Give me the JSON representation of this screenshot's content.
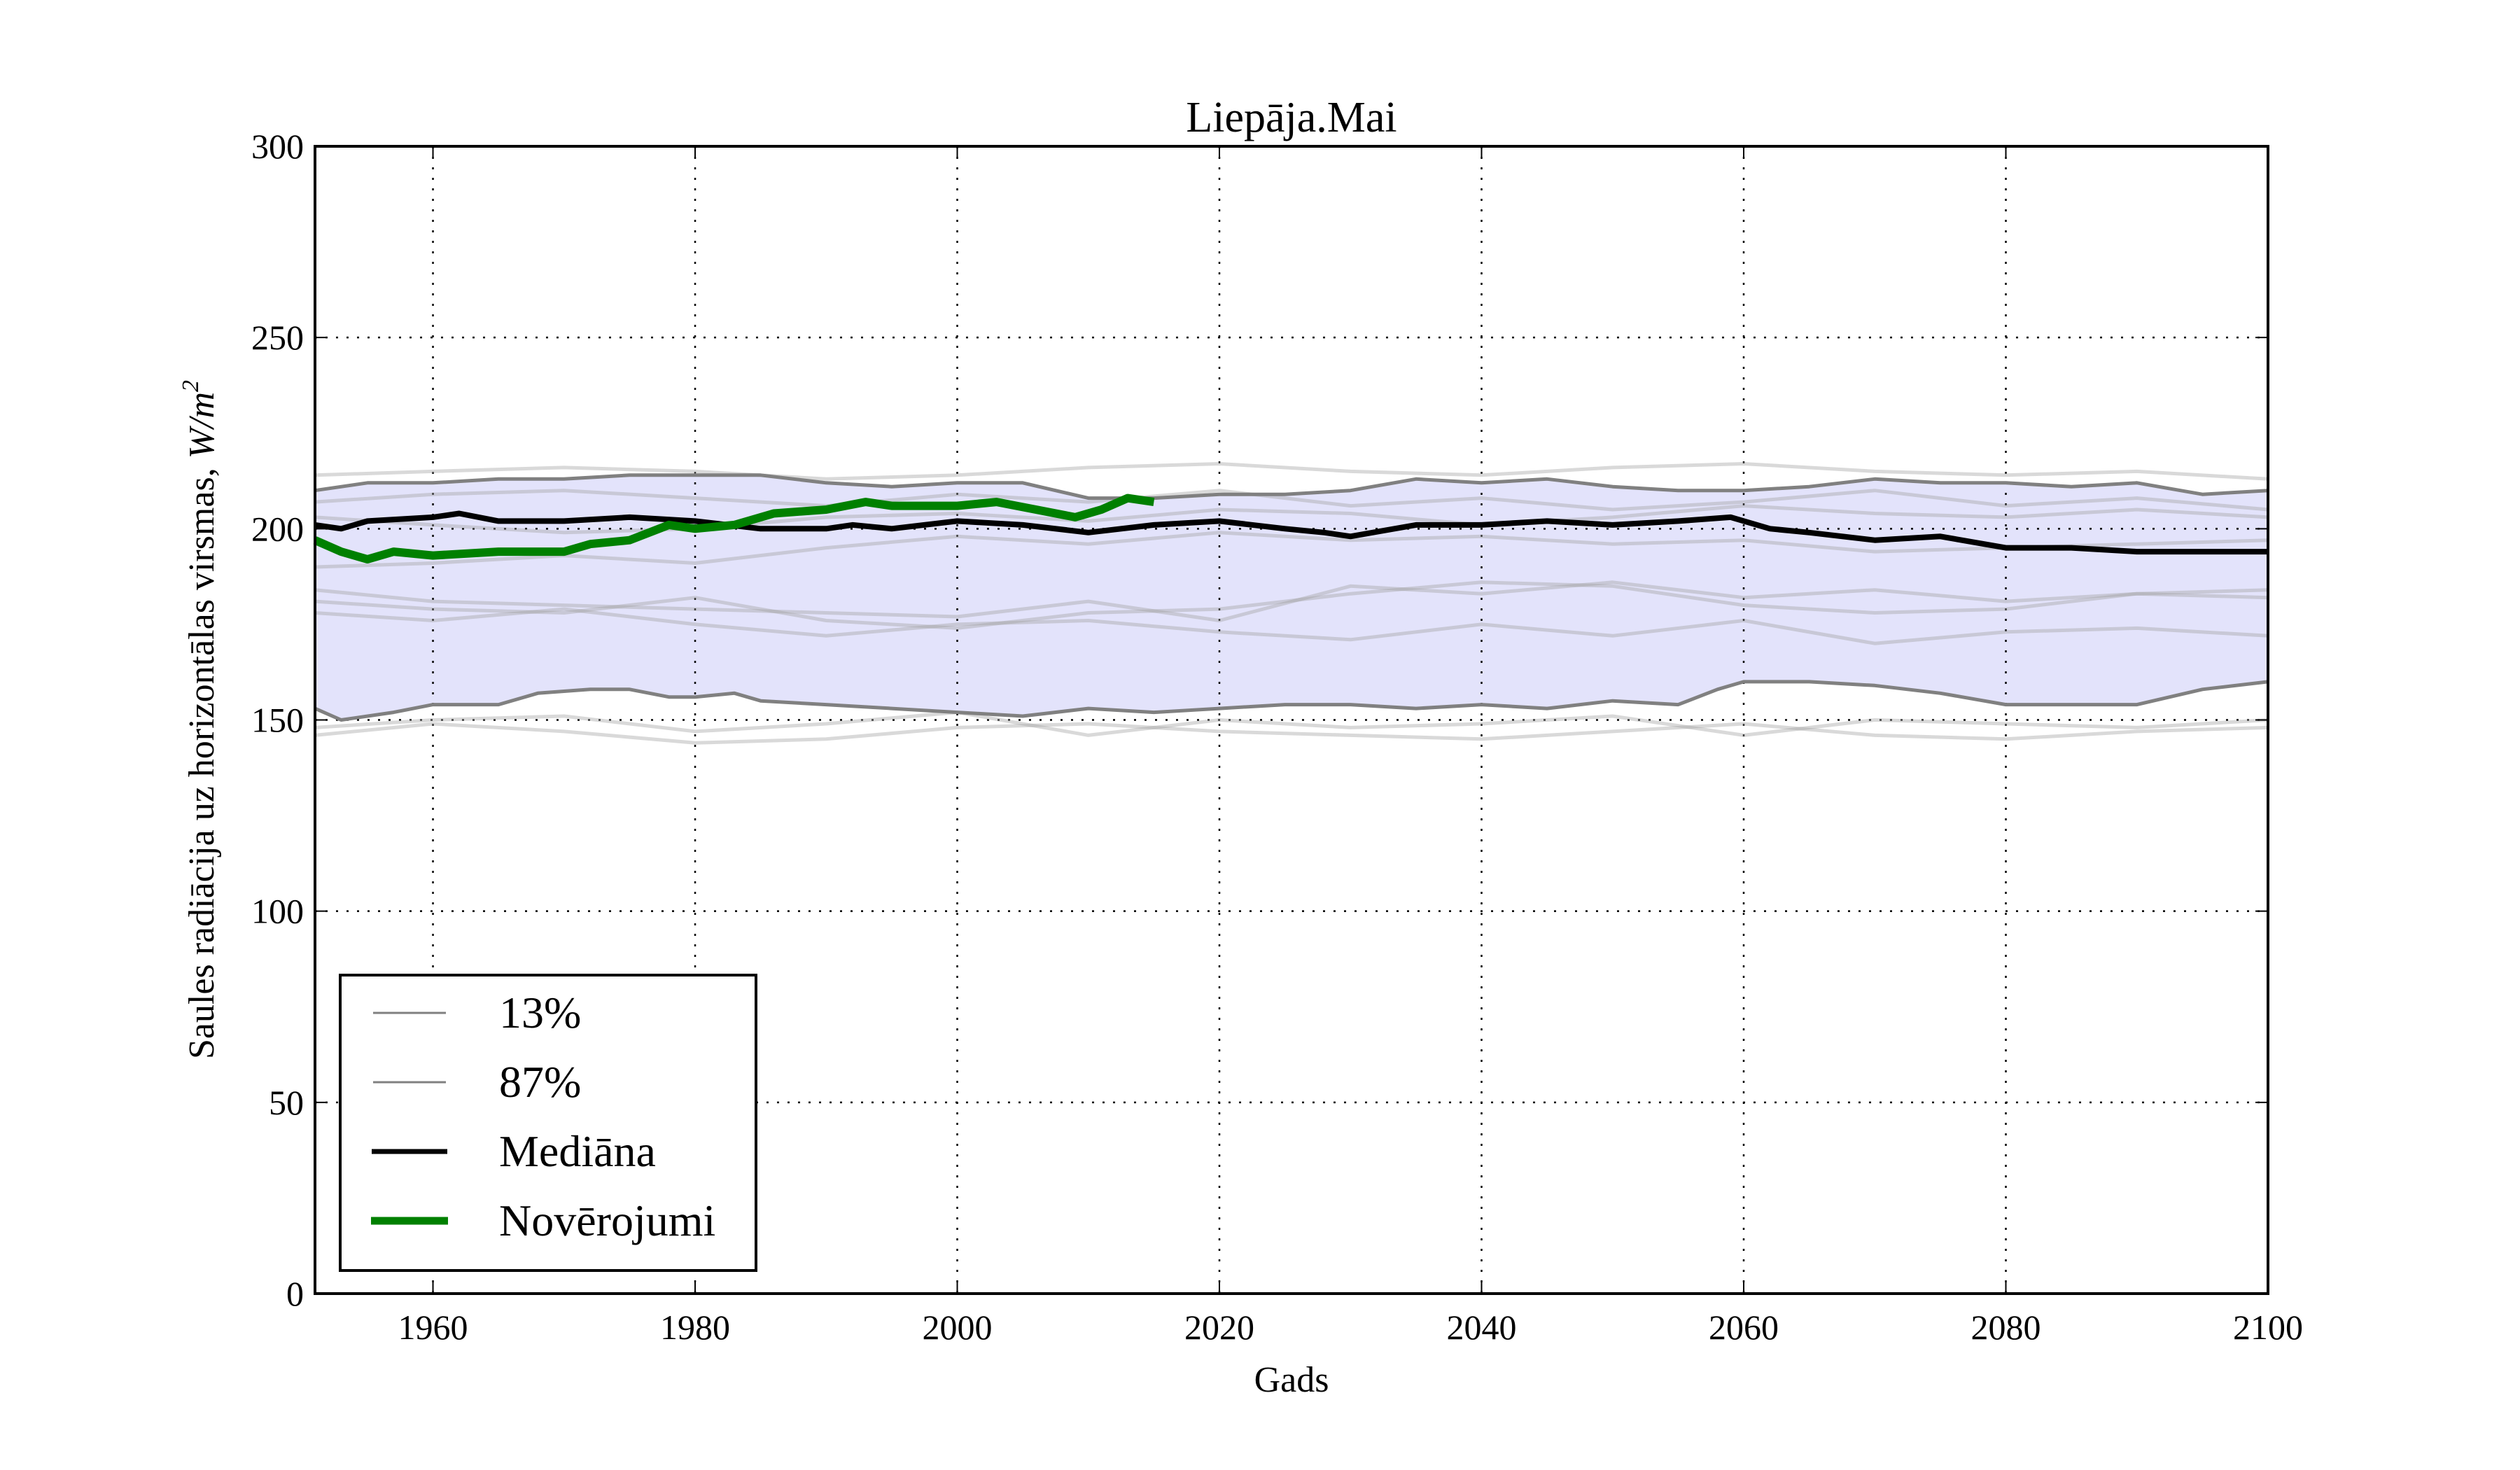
{
  "chart_data": {
    "type": "line",
    "title": "Liepāja.Mai",
    "xlabel": "Gads",
    "ylabel_text": "Saules radiācija uz horizontālas virsmas, ",
    "ylabel_unit": "W/m",
    "ylabel_exp": "2",
    "xlim": [
      1951,
      2100
    ],
    "ylim": [
      0,
      300
    ],
    "x_ticks": [
      1960,
      1980,
      2000,
      2020,
      2040,
      2060,
      2080,
      2100
    ],
    "x_tick_labels": [
      "1960",
      "1980",
      "2000",
      "2020",
      "2040",
      "2060",
      "2080",
      "2100"
    ],
    "y_ticks": [
      0,
      50,
      100,
      150,
      200,
      250,
      300
    ],
    "y_tick_labels": [
      "0",
      "50",
      "100",
      "150",
      "200",
      "250",
      "300"
    ],
    "grid": true,
    "legend_position": "lower-left",
    "band": {
      "lower_series": "13%",
      "upper_series": "87%",
      "color": "#e3e3fb"
    },
    "series": [
      {
        "name": "13%",
        "color": "#808080",
        "x": [
          1951,
          1953,
          1957,
          1960,
          1965,
          1968,
          1972,
          1975,
          1978,
          1980,
          1983,
          1985,
          1990,
          1995,
          2000,
          2005,
          2010,
          2015,
          2020,
          2025,
          2030,
          2035,
          2040,
          2045,
          2050,
          2055,
          2058,
          2060,
          2065,
          2070,
          2075,
          2080,
          2085,
          2090,
          2095,
          2100
        ],
        "y": [
          153,
          150,
          152,
          154,
          154,
          157,
          158,
          158,
          156,
          156,
          157,
          155,
          154,
          153,
          152,
          151,
          153,
          152,
          153,
          154,
          154,
          153,
          154,
          153,
          155,
          154,
          158,
          160,
          160,
          159,
          157,
          154,
          154,
          154,
          158,
          160
        ]
      },
      {
        "name": "87%",
        "color": "#808080",
        "x": [
          1951,
          1955,
          1960,
          1965,
          1970,
          1975,
          1980,
          1985,
          1990,
          1995,
          2000,
          2005,
          2010,
          2015,
          2020,
          2025,
          2030,
          2035,
          2040,
          2045,
          2050,
          2055,
          2060,
          2065,
          2070,
          2075,
          2080,
          2085,
          2090,
          2095,
          2100
        ],
        "y": [
          210,
          212,
          212,
          213,
          213,
          214,
          214,
          214,
          212,
          211,
          212,
          212,
          208,
          208,
          209,
          209,
          210,
          213,
          212,
          213,
          211,
          210,
          210,
          211,
          213,
          212,
          212,
          211,
          212,
          209,
          210
        ]
      },
      {
        "name": "Mediāna",
        "color": "#000000",
        "x": [
          1951,
          1953,
          1955,
          1960,
          1962,
          1965,
          1970,
          1975,
          1980,
          1985,
          1990,
          1992,
          1995,
          2000,
          2005,
          2010,
          2015,
          2020,
          2025,
          2028,
          2030,
          2035,
          2040,
          2045,
          2050,
          2055,
          2059,
          2062,
          2065,
          2070,
          2075,
          2080,
          2085,
          2090,
          2095,
          2100
        ],
        "y": [
          201,
          200,
          202,
          203,
          204,
          202,
          202,
          203,
          202,
          200,
          200,
          201,
          200,
          202,
          201,
          199,
          201,
          202,
          200,
          199,
          198,
          201,
          201,
          202,
          201,
          202,
          203,
          200,
          199,
          197,
          198,
          195,
          195,
          194,
          194,
          194
        ]
      },
      {
        "name": "Novērojumi",
        "color": "#008000",
        "x": [
          1951,
          1953,
          1955,
          1957,
          1960,
          1965,
          1970,
          1972,
          1975,
          1978,
          1980,
          1983,
          1986,
          1990,
          1993,
          1995,
          2000,
          2003,
          2006,
          2009,
          2011,
          2013,
          2015
        ],
        "y": [
          197,
          194,
          192,
          194,
          193,
          194,
          194,
          196,
          197,
          201,
          200,
          201,
          204,
          205,
          207,
          206,
          206,
          207,
          205,
          203,
          205,
          208,
          207
        ]
      }
    ],
    "ensemble_members": [
      {
        "x": [
          1951,
          1960,
          1970,
          1980,
          1990,
          2000,
          2010,
          2020,
          2030,
          2040,
          2050,
          2060,
          2070,
          2080,
          2090,
          2100
        ],
        "y": [
          214,
          215,
          216,
          215,
          213,
          214,
          216,
          217,
          215,
          214,
          216,
          217,
          215,
          214,
          215,
          213
        ]
      },
      {
        "x": [
          1951,
          1960,
          1970,
          1980,
          1990,
          2000,
          2010,
          2020,
          2030,
          2040,
          2050,
          2060,
          2070,
          2080,
          2090,
          2100
        ],
        "y": [
          207,
          209,
          210,
          208,
          206,
          209,
          207,
          210,
          206,
          208,
          205,
          207,
          210,
          206,
          208,
          205
        ]
      },
      {
        "x": [
          1951,
          1960,
          1970,
          1980,
          1990,
          2000,
          2010,
          2020,
          2030,
          2040,
          2050,
          2060,
          2070,
          2080,
          2090,
          2100
        ],
        "y": [
          190,
          191,
          193,
          191,
          195,
          198,
          196,
          199,
          197,
          198,
          196,
          197,
          194,
          195,
          196,
          197
        ]
      },
      {
        "x": [
          1951,
          1960,
          1970,
          1980,
          1990,
          2000,
          2010,
          2020,
          2030,
          2040,
          2050,
          2060,
          2070,
          2080,
          2090,
          2100
        ],
        "y": [
          184,
          181,
          180,
          179,
          178,
          177,
          181,
          176,
          185,
          183,
          186,
          182,
          184,
          181,
          183,
          184
        ]
      },
      {
        "x": [
          1951,
          1960,
          1970,
          1980,
          1990,
          2000,
          2010,
          2020,
          2030,
          2040,
          2050,
          2060,
          2070,
          2080,
          2090,
          2100
        ],
        "y": [
          181,
          179,
          178,
          182,
          176,
          174,
          178,
          179,
          183,
          186,
          185,
          180,
          178,
          179,
          183,
          182
        ]
      },
      {
        "x": [
          1951,
          1960,
          1970,
          1980,
          1990,
          2000,
          2010,
          2020,
          2030,
          2040,
          2050,
          2060,
          2070,
          2080,
          2090,
          2100
        ],
        "y": [
          178,
          176,
          179,
          175,
          172,
          175,
          176,
          173,
          171,
          175,
          172,
          176,
          170,
          173,
          174,
          172
        ]
      },
      {
        "x": [
          1951,
          1960,
          1970,
          1980,
          1990,
          2000,
          2010,
          2020,
          2030,
          2040,
          2050,
          2060,
          2070,
          2080,
          2090,
          2100
        ],
        "y": [
          148,
          150,
          151,
          147,
          149,
          152,
          146,
          150,
          148,
          149,
          151,
          146,
          150,
          149,
          148,
          150
        ]
      },
      {
        "x": [
          1951,
          1960,
          1970,
          1980,
          1990,
          2000,
          2010,
          2020,
          2030,
          2040,
          2050,
          2060,
          2070,
          2080,
          2090,
          2100
        ],
        "y": [
          146,
          149,
          147,
          144,
          145,
          148,
          149,
          147,
          146,
          145,
          147,
          149,
          146,
          145,
          147,
          148
        ]
      },
      {
        "x": [
          1951,
          1960,
          1970,
          1980,
          1990,
          2000,
          2010,
          2020,
          2030,
          2040,
          2050,
          2060,
          2070,
          2080,
          2090,
          2100
        ],
        "y": [
          203,
          201,
          199,
          200,
          203,
          204,
          202,
          205,
          204,
          201,
          203,
          206,
          204,
          203,
          205,
          203
        ]
      }
    ]
  }
}
